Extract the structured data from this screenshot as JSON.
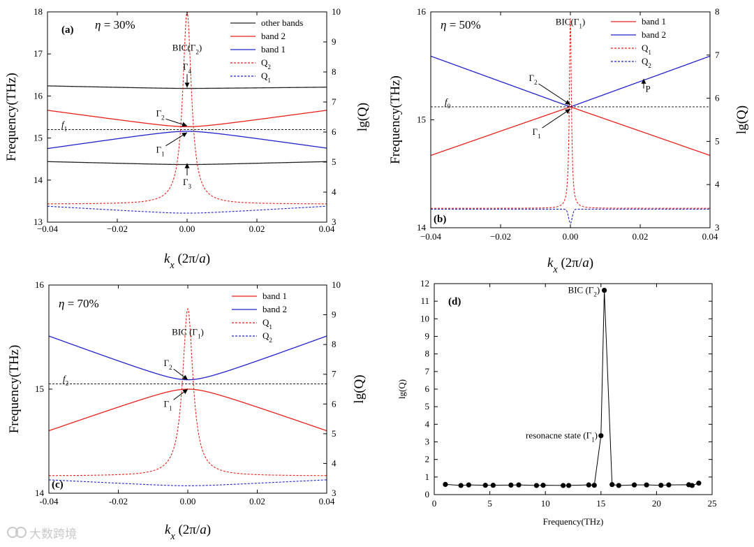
{
  "watermark": "大数跨境",
  "colors": {
    "red": "#e8211c",
    "blue": "#2222cc",
    "black": "#222222"
  },
  "chart_data": [
    {
      "id": "a",
      "type": "line",
      "panel_label": "(a)",
      "title": "η = 30%",
      "title_prefix": "η",
      "title_value": " = 30%",
      "xlabel": "k_x (2π/a)",
      "xlabel_parts": {
        "k": "k",
        "sub": "x",
        "pre": " (2π/",
        "a": "a",
        "post": ")"
      },
      "ylabel": "Frequency(THz)",
      "y2label": "lg(Q)",
      "xlim": [
        -0.04,
        0.04
      ],
      "ylim": [
        13,
        18
      ],
      "y2lim": [
        3,
        10
      ],
      "xticks": [
        -0.04,
        -0.02,
        0.0,
        0.02,
        0.04
      ],
      "xtick_labels": [
        "−0.04",
        "−0.02",
        "0.00",
        "0.02",
        "0.04"
      ],
      "yticks": [
        13,
        14,
        15,
        16,
        17,
        18
      ],
      "y2ticks": [
        3,
        4,
        5,
        6,
        7,
        8,
        9,
        10
      ],
      "legend": [
        {
          "label": "other bands",
          "style": "solid",
          "color": "#222222"
        },
        {
          "label": "band 2",
          "style": "solid",
          "color": "#e8211c"
        },
        {
          "label": "band 1",
          "style": "solid",
          "color": "#2222cc"
        },
        {
          "label": "Q",
          "sub": "2",
          "style": "dash",
          "color": "#e8211c"
        },
        {
          "label": "Q",
          "sub": "1",
          "style": "dash",
          "color": "#2222cc"
        }
      ],
      "series": [
        {
          "name": "other bands (upper)",
          "axis": "y",
          "color": "#222222",
          "style": "solid",
          "x": [
            -0.04,
            0,
            0.04
          ],
          "y": [
            16.24,
            16.18,
            16.21
          ],
          "curve": "v"
        },
        {
          "name": "band 2",
          "axis": "y",
          "color": "#e8211c",
          "style": "solid",
          "x": [
            -0.04,
            0,
            0.04
          ],
          "y": [
            15.66,
            15.27,
            15.66
          ],
          "curve": "v"
        },
        {
          "name": "band 1",
          "axis": "y",
          "color": "#2222cc",
          "style": "solid",
          "x": [
            -0.04,
            0,
            0.04
          ],
          "y": [
            14.75,
            15.16,
            14.76
          ],
          "curve": "v"
        },
        {
          "name": "other bands (lower)",
          "axis": "y",
          "color": "#222222",
          "style": "solid",
          "x": [
            -0.04,
            0,
            0.04
          ],
          "y": [
            14.44,
            14.37,
            14.44
          ],
          "curve": "v"
        },
        {
          "name": "Q2",
          "axis": "y2",
          "color": "#e8211c",
          "style": "dash",
          "x": [
            -0.04,
            0,
            0.04
          ],
          "y": [
            3.6,
            10.0,
            3.6
          ],
          "curve": "lorentz",
          "width": 0.0015
        },
        {
          "name": "Q1",
          "axis": "y2",
          "color": "#2222cc",
          "style": "dash",
          "x": [
            -0.04,
            0,
            0.04
          ],
          "y": [
            3.53,
            3.3,
            3.53
          ],
          "curve": "v"
        }
      ],
      "hline": {
        "y": 15.2,
        "label": "f",
        "sub": "1"
      },
      "annotations": [
        {
          "text": "BIC(Γ",
          "sub": "2",
          "suffix": ")",
          "x": 0.0,
          "y": 17.08,
          "anchor": "middle",
          "type": "text"
        },
        {
          "text": "Γ",
          "sub": "4",
          "x": 0.0,
          "y": 16.62,
          "anchor": "middle",
          "type": "arrow-down",
          "ax": 0.0,
          "ay": 16.2
        },
        {
          "text": "Γ",
          "sub": "2",
          "x": -0.0065,
          "y": 15.52,
          "anchor": "end",
          "type": "arrow",
          "ax": 0.0,
          "ay": 15.29
        },
        {
          "text": "Γ",
          "sub": "1",
          "x": -0.0065,
          "y": 14.65,
          "anchor": "end",
          "type": "arrow",
          "ax": 0.0,
          "ay": 15.13
        },
        {
          "text": "Γ",
          "sub": "3",
          "x": 0.0,
          "y": 13.88,
          "anchor": "middle",
          "type": "arrow-up",
          "ax": 0.0,
          "ay": 14.4
        }
      ]
    },
    {
      "id": "b",
      "type": "line",
      "panel_label": "(b)",
      "title": "η = 50%",
      "title_prefix": "η",
      "title_value": " = 50%",
      "xlabel": "k_x (2π/a)",
      "xlabel_parts": {
        "k": "k",
        "sub": "x",
        "pre": " (2π/",
        "a": "a",
        "post": ")"
      },
      "ylabel": "Frequency(THz)",
      "y2label": "lg(Q)",
      "xlim": [
        -0.04,
        0.04
      ],
      "ylim": [
        14,
        16
      ],
      "y2lim": [
        3,
        8
      ],
      "xticks": [
        -0.04,
        -0.02,
        0.0,
        0.02,
        0.04
      ],
      "xtick_labels": [
        "−0.04",
        "−0.02",
        "0.00",
        "0.02",
        "0.04"
      ],
      "yticks": [
        14,
        15,
        16
      ],
      "y2ticks": [
        3,
        4,
        5,
        6,
        7,
        8
      ],
      "legend": [
        {
          "label": "band 1",
          "style": "solid",
          "color": "#e8211c"
        },
        {
          "label": "band 2",
          "style": "solid",
          "color": "#2222cc"
        },
        {
          "label": "Q",
          "sub": "1",
          "style": "dash",
          "color": "#e8211c"
        },
        {
          "label": "Q",
          "sub": "2",
          "style": "dash",
          "color": "#2222cc"
        }
      ],
      "series": [
        {
          "name": "band 2",
          "axis": "y",
          "color": "#2222cc",
          "style": "solid",
          "x": [
            -0.04,
            0,
            0.04
          ],
          "y": [
            15.59,
            15.12,
            15.59
          ],
          "curve": "linear"
        },
        {
          "name": "band 1",
          "axis": "y",
          "color": "#e8211c",
          "style": "solid",
          "x": [
            -0.04,
            0,
            0.04
          ],
          "y": [
            14.67,
            15.12,
            14.67
          ],
          "curve": "linear"
        },
        {
          "name": "Q1",
          "axis": "y2",
          "color": "#e8211c",
          "style": "dash",
          "x": [
            -0.04,
            0,
            0.04
          ],
          "y": [
            3.45,
            7.85,
            3.45
          ],
          "curve": "lorentz",
          "width": 0.00035
        },
        {
          "name": "Q2",
          "axis": "y2",
          "color": "#2222cc",
          "style": "dash",
          "x": [
            -0.04,
            0,
            0.04
          ],
          "y": [
            3.43,
            3.1,
            3.43
          ],
          "curve": "dip",
          "width": 0.0005
        }
      ],
      "hline": {
        "y": 15.12,
        "label": "f",
        "sub": "0"
      },
      "annotations": [
        {
          "text": "BIC(Γ",
          "sub": "1",
          "suffix": ")",
          "x": 0.0,
          "y": 15.88,
          "anchor": "middle",
          "type": "text"
        },
        {
          "text": "Γ",
          "sub": "2",
          "x": -0.0095,
          "y": 15.36,
          "anchor": "end",
          "type": "arrow",
          "ax": 0.0,
          "ay": 15.14
        },
        {
          "text": "Γ",
          "sub": "1",
          "x": -0.0085,
          "y": 14.86,
          "anchor": "end",
          "type": "arrow",
          "ax": 0.0,
          "ay": 15.1
        },
        {
          "text": "P",
          "x": 0.0215,
          "y": 15.26,
          "anchor": "start",
          "type": "arrow-up",
          "ax": 0.021,
          "ay": 15.38
        }
      ]
    },
    {
      "id": "c",
      "type": "line",
      "panel_label": "(c)",
      "title": "η = 70%",
      "title_prefix": "η",
      "title_value": " = 70%",
      "xlabel": "k_x (2π/a)",
      "xlabel_parts": {
        "k": "k",
        "sub": "x",
        "pre": " (2π/",
        "a": "a",
        "post": ")"
      },
      "ylabel": "Frequency(THz)",
      "y2label": "lg(Q)",
      "xlim": [
        -0.04,
        0.04
      ],
      "ylim": [
        14,
        16
      ],
      "y2lim": [
        3,
        10
      ],
      "xticks": [
        -0.04,
        -0.02,
        0.0,
        0.02,
        0.04
      ],
      "xtick_labels": [
        "-0.04",
        "-0.02",
        "0.00",
        "0.02",
        "0.04"
      ],
      "yticks": [
        14,
        15,
        16
      ],
      "y2ticks": [
        3,
        4,
        5,
        6,
        7,
        8,
        9,
        10
      ],
      "legend": [
        {
          "label": "band 1",
          "style": "solid",
          "color": "#e8211c"
        },
        {
          "label": "band 2",
          "style": "solid",
          "color": "#2222cc"
        },
        {
          "label": "Q",
          "sub": "1",
          "style": "dash",
          "color": "#e8211c"
        },
        {
          "label": "Q",
          "sub": "2",
          "style": "dash",
          "color": "#2222cc"
        }
      ],
      "series": [
        {
          "name": "band 2",
          "axis": "y",
          "color": "#2222cc",
          "style": "solid",
          "x": [
            -0.04,
            0,
            0.04
          ],
          "y": [
            15.51,
            15.09,
            15.51
          ],
          "curve": "v"
        },
        {
          "name": "band 1",
          "axis": "y",
          "color": "#e8211c",
          "style": "solid",
          "x": [
            -0.04,
            0,
            0.04
          ],
          "y": [
            14.6,
            15.0,
            14.6
          ],
          "curve": "v"
        },
        {
          "name": "Q1",
          "axis": "y2",
          "color": "#e8211c",
          "style": "dash",
          "x": [
            -0.04,
            0,
            0.04
          ],
          "y": [
            3.58,
            9.2,
            3.58
          ],
          "curve": "lorentz",
          "width": 0.0018
        },
        {
          "name": "Q2",
          "axis": "y2",
          "color": "#2222cc",
          "style": "dash",
          "x": [
            -0.04,
            0,
            0.04
          ],
          "y": [
            3.45,
            3.25,
            3.45
          ],
          "curve": "v"
        }
      ],
      "hline": {
        "y": 15.05,
        "label": "f",
        "sub": "2"
      },
      "annotations": [
        {
          "text": "BIC (Γ",
          "sub": "1",
          "suffix": ")",
          "x": 0.0,
          "y": 15.52,
          "anchor": "middle",
          "type": "text"
        },
        {
          "text": "Γ",
          "sub": "2",
          "x": -0.0045,
          "y": 15.22,
          "anchor": "end",
          "type": "arrow",
          "ax": 0.0,
          "ay": 15.09
        },
        {
          "text": "Γ",
          "sub": "1",
          "x": -0.0045,
          "y": 14.83,
          "anchor": "end",
          "type": "arrow",
          "ax": 0.0,
          "ay": 15.0
        }
      ]
    },
    {
      "id": "d",
      "type": "scatter",
      "panel_label": "(d)",
      "xlabel": "Frequency(THz)",
      "ylabel": "lg(Q)",
      "xlim": [
        0,
        25
      ],
      "ylim": [
        0,
        12
      ],
      "xticks": [
        0,
        5,
        10,
        15,
        20,
        25
      ],
      "yticks": [
        0,
        1,
        2,
        3,
        4,
        5,
        6,
        7,
        8,
        9,
        10,
        11,
        12
      ],
      "series": [
        {
          "name": "lg(Q)",
          "x": [
            1.0,
            2.4,
            3.1,
            4.6,
            5.3,
            6.9,
            7.6,
            9.2,
            9.8,
            11.6,
            12.1,
            13.9,
            14.4,
            15.0,
            15.3,
            16.0,
            16.6,
            18.0,
            19.1,
            20.4,
            21.1,
            22.9,
            23.2,
            23.8
          ],
          "y": [
            0.58,
            0.52,
            0.55,
            0.53,
            0.53,
            0.54,
            0.55,
            0.52,
            0.53,
            0.52,
            0.52,
            0.55,
            0.53,
            3.35,
            11.62,
            0.57,
            0.52,
            0.55,
            0.55,
            0.53,
            0.55,
            0.56,
            0.52,
            0.65
          ]
        }
      ],
      "annotations": [
        {
          "text": "BIC (Γ",
          "sub": "2",
          "suffix": ")",
          "x": 14.9,
          "y": 11.62,
          "anchor": "end"
        },
        {
          "text": "resonacne state (Γ",
          "sub": "1",
          "suffix": ")",
          "x": 14.7,
          "y": 3.35,
          "anchor": "end"
        }
      ]
    }
  ]
}
